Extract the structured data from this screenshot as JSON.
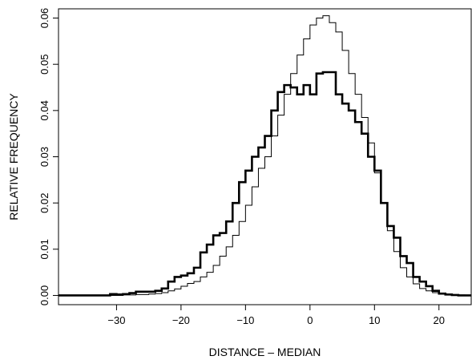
{
  "chart_data": {
    "type": "line",
    "title": "",
    "xlabel": "DISTANCE – MEDIAN",
    "ylabel": "RELATIVE FREQUENCY",
    "xlim": [
      -39,
      25
    ],
    "ylim": [
      -0.002,
      0.062
    ],
    "x_ticks": [
      -30,
      -20,
      -10,
      0,
      10,
      20
    ],
    "x_tick_labels": [
      "−30",
      "−20",
      "−10",
      "0",
      "10",
      "20"
    ],
    "y_ticks": [
      0.0,
      0.01,
      0.02,
      0.03,
      0.04,
      0.05,
      0.06
    ],
    "y_tick_labels": [
      "0.00",
      "0.01",
      "0.02",
      "0.03",
      "0.04",
      "0.05",
      "0.06"
    ],
    "grid": false,
    "legend": "none",
    "bin_edges": [
      -39,
      -38,
      -37,
      -36,
      -35,
      -34,
      -33,
      -32,
      -31,
      -30,
      -29,
      -28,
      -27,
      -26,
      -25,
      -24,
      -23,
      -22,
      -21,
      -20,
      -19,
      -18,
      -17,
      -16,
      -15,
      -14,
      -13,
      -12,
      -11,
      -10,
      -9,
      -8,
      -7,
      -6,
      -5,
      -4,
      -3,
      -2,
      -1,
      0,
      1,
      2,
      3,
      4,
      5,
      6,
      7,
      8,
      9,
      10,
      11,
      12,
      13,
      14,
      15,
      16,
      17,
      18,
      19,
      20,
      21,
      22,
      23,
      24,
      25
    ],
    "series": [
      {
        "style": "thin",
        "values": [
          0.0,
          0.0,
          0.0,
          0.0,
          0.0,
          0.0,
          0.0,
          0.0,
          0.0,
          0.0,
          0.0001,
          0.0001,
          0.0002,
          0.0002,
          0.0003,
          0.0004,
          0.0006,
          0.001,
          0.0014,
          0.002,
          0.0026,
          0.003,
          0.004,
          0.005,
          0.0065,
          0.0085,
          0.0105,
          0.013,
          0.016,
          0.0195,
          0.0235,
          0.0275,
          0.03,
          0.0345,
          0.039,
          0.0435,
          0.048,
          0.052,
          0.0555,
          0.0585,
          0.06,
          0.0605,
          0.059,
          0.057,
          0.053,
          0.048,
          0.0435,
          0.0385,
          0.033,
          0.0265,
          0.02,
          0.014,
          0.0095,
          0.006,
          0.004,
          0.0025,
          0.0015,
          0.001,
          0.0006,
          0.0004,
          0.0002,
          0.0001,
          0.0001,
          0.0
        ]
      },
      {
        "style": "bold",
        "values": [
          0.0,
          0.0,
          0.0,
          0.0,
          0.0,
          0.0,
          0.0,
          0.0,
          0.0003,
          0.0002,
          0.0003,
          0.0005,
          0.0008,
          0.0008,
          0.0008,
          0.001,
          0.0015,
          0.003,
          0.004,
          0.0043,
          0.0048,
          0.006,
          0.0093,
          0.011,
          0.013,
          0.0135,
          0.016,
          0.02,
          0.0245,
          0.027,
          0.03,
          0.032,
          0.0345,
          0.04,
          0.044,
          0.0455,
          0.045,
          0.0435,
          0.0455,
          0.0435,
          0.048,
          0.0483,
          0.0483,
          0.0435,
          0.0415,
          0.04,
          0.0375,
          0.035,
          0.03,
          0.027,
          0.02,
          0.015,
          0.0125,
          0.0085,
          0.007,
          0.004,
          0.003,
          0.002,
          0.001,
          0.0004,
          0.0002,
          0.0001,
          0.0,
          0.0
        ]
      }
    ]
  }
}
